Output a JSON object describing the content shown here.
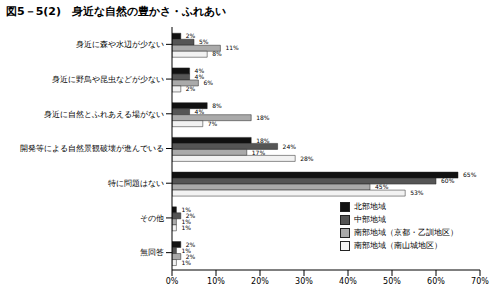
{
  "chart_data": {
    "type": "bar",
    "orientation": "horizontal",
    "title": "図5－5(2)　身近な自然の豊かさ・ふれあい",
    "categories": [
      "身近に森や水辺が少ない",
      "身近に野鳥や昆虫などが少ない",
      "身近に自然とふれあえる場がない",
      "開発等による自然景観破壊が進んでいる",
      "特に問題はない",
      "その他",
      "無回答"
    ],
    "series": [
      {
        "name": "北部地域",
        "color": "#111111",
        "values": [
          2,
          4,
          8,
          18,
          65,
          1,
          2
        ],
        "value_labels": [
          "2%",
          "4%",
          "8%",
          "18%",
          "65%",
          "1%",
          "2%"
        ]
      },
      {
        "name": "中部地域",
        "color": "#555555",
        "values": [
          5,
          4,
          4,
          24,
          60,
          2,
          1
        ],
        "value_labels": [
          "5%",
          "4%",
          "4%",
          "24%",
          "60%",
          "2%",
          "1%"
        ]
      },
      {
        "name": "南部地域（京都・乙訓地区）",
        "color": "#aaaaaa",
        "values": [
          11,
          6,
          18,
          17,
          45,
          1,
          2
        ],
        "value_labels": [
          "11%",
          "6%",
          "18%",
          "17%",
          "45%",
          "1%",
          "2%"
        ]
      },
      {
        "name": "南部地域（南山城地区）",
        "color": "#f2f2f2",
        "values": [
          8,
          2,
          7,
          28,
          53,
          1,
          1
        ],
        "value_labels": [
          "8%",
          "2%",
          "7%",
          "28%",
          "53%",
          "1%",
          "1%"
        ]
      }
    ],
    "xlim": [
      0,
      70
    ],
    "xticks": [
      {
        "value": 0,
        "label": "0%"
      },
      {
        "value": 10,
        "label": "10%"
      },
      {
        "value": 20,
        "label": "20%"
      },
      {
        "value": 30,
        "label": "30%"
      },
      {
        "value": 40,
        "label": "40%"
      },
      {
        "value": 50,
        "label": "50%"
      },
      {
        "value": 60,
        "label": "60%"
      },
      {
        "value": 70,
        "label": "70%"
      }
    ],
    "grid": false,
    "data_labels": true,
    "legend": "lower right"
  }
}
